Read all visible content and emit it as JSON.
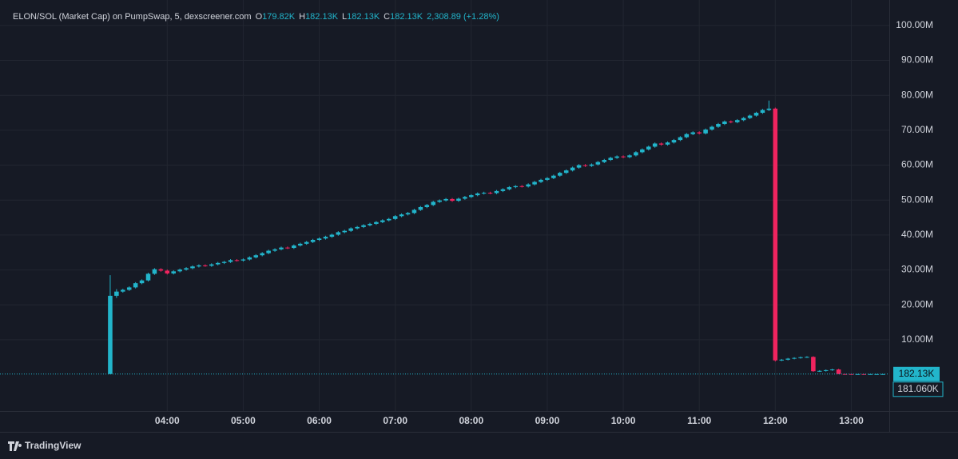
{
  "chart_data": {
    "type": "candlestick",
    "title": "ELON/SOL (Market Cap) on PumpSwap, 5, dexscreener.com",
    "ohlc_legend": [
      {
        "key": "O",
        "value": "179.82K"
      },
      {
        "key": "H",
        "value": "182.13K"
      },
      {
        "key": "L",
        "value": "182.13K"
      },
      {
        "key": "C",
        "value": "182.13K"
      }
    ],
    "change": "2,308.89 (+1.28%)",
    "up_color": "#22b5cb",
    "down_color": "#f0245f",
    "xlim": [
      "01:48",
      "13:30"
    ],
    "xticks": [
      "04:00",
      "05:00",
      "06:00",
      "07:00",
      "08:00",
      "09:00",
      "10:00",
      "11:00",
      "12:00",
      "13:00"
    ],
    "ylim": [
      -10.4,
      107.3
    ],
    "yticks": [
      {
        "value": 10,
        "label": "10.00M"
      },
      {
        "value": 20,
        "label": "20.00M"
      },
      {
        "value": 30,
        "label": "30.00M"
      },
      {
        "value": 40,
        "label": "40.00M"
      },
      {
        "value": 50,
        "label": "50.00M"
      },
      {
        "value": 60,
        "label": "60.00M"
      },
      {
        "value": 70,
        "label": "70.00M"
      },
      {
        "value": 80,
        "label": "80.00M"
      },
      {
        "value": 90,
        "label": "90.00M"
      },
      {
        "value": 100,
        "label": "100.00M"
      }
    ],
    "grid": true,
    "last_price": {
      "value": 0.18213,
      "label": "182.13K"
    },
    "secondary_label": "181.060K",
    "brand": "TradingView",
    "candles": [
      [
        "03:15",
        0.2,
        28.5,
        0.2,
        22.6
      ],
      [
        "03:20",
        22.6,
        24.5,
        22.0,
        23.8
      ],
      [
        "03:25",
        23.8,
        24.6,
        23.5,
        24.3
      ],
      [
        "03:30",
        24.3,
        25.3,
        24.0,
        25.0
      ],
      [
        "03:35",
        25.0,
        26.5,
        24.7,
        26.2
      ],
      [
        "03:40",
        26.2,
        27.3,
        25.9,
        27.0
      ],
      [
        "03:45",
        27.0,
        29.2,
        26.7,
        28.9
      ],
      [
        "03:50",
        28.9,
        30.5,
        28.6,
        30.2
      ],
      [
        "03:55",
        30.2,
        30.5,
        29.5,
        29.8
      ],
      [
        "04:00",
        29.8,
        30.1,
        28.7,
        29.0
      ],
      [
        "04:05",
        29.0,
        29.9,
        28.7,
        29.6
      ],
      [
        "04:10",
        29.6,
        30.4,
        29.3,
        30.1
      ],
      [
        "04:15",
        30.1,
        30.8,
        29.8,
        30.5
      ],
      [
        "04:20",
        30.5,
        31.3,
        30.2,
        31.0
      ],
      [
        "04:25",
        31.0,
        31.6,
        30.7,
        31.3
      ],
      [
        "04:30",
        31.3,
        31.6,
        30.9,
        31.2
      ],
      [
        "04:35",
        31.2,
        31.9,
        30.9,
        31.6
      ],
      [
        "04:40",
        31.6,
        32.3,
        31.3,
        32.0
      ],
      [
        "04:45",
        32.0,
        32.6,
        31.7,
        32.3
      ],
      [
        "04:50",
        32.3,
        33.1,
        32.0,
        32.8
      ],
      [
        "04:55",
        32.8,
        33.1,
        32.4,
        32.7
      ],
      [
        "05:00",
        32.7,
        33.3,
        32.4,
        33.0
      ],
      [
        "05:05",
        33.0,
        33.9,
        32.7,
        33.6
      ],
      [
        "05:10",
        33.6,
        34.5,
        33.3,
        34.2
      ],
      [
        "05:15",
        34.2,
        35.1,
        33.9,
        34.8
      ],
      [
        "05:20",
        34.8,
        35.8,
        34.5,
        35.5
      ],
      [
        "05:25",
        35.5,
        36.2,
        35.2,
        35.9
      ],
      [
        "05:30",
        35.9,
        36.7,
        35.6,
        36.4
      ],
      [
        "05:35",
        36.4,
        36.7,
        36.0,
        36.3
      ],
      [
        "05:40",
        36.3,
        37.3,
        36.0,
        37.0
      ],
      [
        "05:45",
        37.0,
        37.8,
        36.7,
        37.5
      ],
      [
        "05:50",
        37.5,
        38.3,
        37.2,
        38.0
      ],
      [
        "05:55",
        38.0,
        38.9,
        37.7,
        38.6
      ],
      [
        "06:00",
        38.6,
        39.3,
        38.3,
        39.0
      ],
      [
        "06:05",
        39.0,
        39.8,
        38.7,
        39.5
      ],
      [
        "06:10",
        39.5,
        40.4,
        39.2,
        40.1
      ],
      [
        "06:15",
        40.1,
        41.1,
        39.8,
        40.8
      ],
      [
        "06:20",
        40.8,
        41.5,
        40.5,
        41.2
      ],
      [
        "06:25",
        41.2,
        42.2,
        40.9,
        41.9
      ],
      [
        "06:30",
        41.9,
        42.6,
        41.6,
        42.3
      ],
      [
        "06:35",
        42.3,
        43.1,
        42.0,
        42.8
      ],
      [
        "06:40",
        42.8,
        43.5,
        42.5,
        43.2
      ],
      [
        "06:45",
        43.2,
        44.0,
        42.9,
        43.7
      ],
      [
        "06:50",
        43.7,
        44.5,
        43.4,
        44.2
      ],
      [
        "06:55",
        44.2,
        44.9,
        43.9,
        44.6
      ],
      [
        "07:00",
        44.6,
        45.7,
        44.3,
        45.4
      ],
      [
        "07:05",
        45.4,
        46.2,
        45.1,
        45.9
      ],
      [
        "07:10",
        45.9,
        46.6,
        45.6,
        46.3
      ],
      [
        "07:15",
        46.3,
        47.5,
        46.0,
        47.2
      ],
      [
        "07:20",
        47.2,
        48.3,
        46.9,
        48.0
      ],
      [
        "07:25",
        48.0,
        48.9,
        47.7,
        48.6
      ],
      [
        "07:30",
        48.6,
        49.8,
        48.3,
        49.5
      ],
      [
        "07:35",
        49.5,
        50.2,
        49.2,
        49.9
      ],
      [
        "07:40",
        49.9,
        50.6,
        49.6,
        50.3
      ],
      [
        "07:45",
        50.3,
        50.6,
        49.5,
        49.8
      ],
      [
        "07:50",
        49.8,
        50.7,
        49.5,
        50.4
      ],
      [
        "07:55",
        50.4,
        51.2,
        50.1,
        50.9
      ],
      [
        "08:00",
        50.9,
        51.7,
        50.6,
        51.4
      ],
      [
        "08:05",
        51.4,
        52.2,
        51.1,
        51.9
      ],
      [
        "08:10",
        51.9,
        52.4,
        51.6,
        52.1
      ],
      [
        "08:15",
        52.1,
        52.4,
        51.7,
        52.0
      ],
      [
        "08:20",
        52.0,
        52.9,
        51.7,
        52.6
      ],
      [
        "08:25",
        52.6,
        53.4,
        52.3,
        53.1
      ],
      [
        "08:30",
        53.1,
        54.0,
        52.8,
        53.7
      ],
      [
        "08:35",
        53.7,
        54.3,
        53.4,
        54.0
      ],
      [
        "08:40",
        54.0,
        54.3,
        53.6,
        53.9
      ],
      [
        "08:45",
        53.9,
        54.8,
        53.6,
        54.5
      ],
      [
        "08:50",
        54.5,
        55.5,
        54.2,
        55.2
      ],
      [
        "08:55",
        55.2,
        56.1,
        54.9,
        55.8
      ],
      [
        "09:00",
        55.8,
        56.6,
        55.5,
        56.3
      ],
      [
        "09:05",
        56.3,
        57.3,
        56.0,
        57.0
      ],
      [
        "09:10",
        57.0,
        58.1,
        56.7,
        57.8
      ],
      [
        "09:15",
        57.8,
        58.8,
        57.5,
        58.5
      ],
      [
        "09:20",
        58.5,
        59.6,
        58.2,
        59.3
      ],
      [
        "09:25",
        59.3,
        60.3,
        59.0,
        60.0
      ],
      [
        "09:30",
        60.0,
        60.3,
        59.5,
        59.8
      ],
      [
        "09:35",
        59.8,
        60.5,
        59.5,
        60.2
      ],
      [
        "09:40",
        60.2,
        61.2,
        59.9,
        60.9
      ],
      [
        "09:45",
        60.9,
        61.8,
        60.6,
        61.5
      ],
      [
        "09:50",
        61.5,
        62.4,
        61.2,
        62.1
      ],
      [
        "09:55",
        62.1,
        62.8,
        61.8,
        62.5
      ],
      [
        "10:00",
        62.5,
        62.8,
        62.0,
        62.3
      ],
      [
        "10:05",
        62.3,
        63.1,
        62.0,
        62.8
      ],
      [
        "10:10",
        62.8,
        64.0,
        62.5,
        63.7
      ],
      [
        "10:15",
        63.7,
        64.8,
        63.4,
        64.5
      ],
      [
        "10:20",
        64.5,
        65.6,
        64.2,
        65.3
      ],
      [
        "10:25",
        65.3,
        66.5,
        65.0,
        66.2
      ],
      [
        "10:30",
        66.2,
        66.5,
        65.6,
        65.9
      ],
      [
        "10:35",
        65.9,
        66.8,
        65.6,
        66.5
      ],
      [
        "10:40",
        66.5,
        67.5,
        66.2,
        67.2
      ],
      [
        "10:45",
        67.2,
        68.3,
        66.9,
        68.0
      ],
      [
        "10:50",
        68.0,
        69.2,
        67.7,
        68.9
      ],
      [
        "10:55",
        68.9,
        69.7,
        68.6,
        69.4
      ],
      [
        "11:00",
        69.4,
        69.7,
        68.8,
        69.1
      ],
      [
        "11:05",
        69.1,
        70.5,
        68.8,
        70.2
      ],
      [
        "11:10",
        70.2,
        71.3,
        69.9,
        71.0
      ],
      [
        "11:15",
        71.0,
        72.1,
        70.7,
        71.8
      ],
      [
        "11:20",
        71.8,
        72.8,
        71.5,
        72.5
      ],
      [
        "11:25",
        72.5,
        72.8,
        72.0,
        72.3
      ],
      [
        "11:30",
        72.3,
        73.2,
        72.0,
        72.9
      ],
      [
        "11:35",
        72.9,
        73.8,
        72.6,
        73.5
      ],
      [
        "11:40",
        73.5,
        74.5,
        73.2,
        74.2
      ],
      [
        "11:45",
        74.2,
        75.3,
        73.9,
        75.0
      ],
      [
        "11:50",
        75.0,
        76.1,
        74.7,
        75.8
      ],
      [
        "11:55",
        75.8,
        78.5,
        75.5,
        76.2
      ],
      [
        "12:00",
        76.2,
        76.5,
        3.8,
        4.1
      ],
      [
        "12:05",
        4.1,
        4.5,
        3.9,
        4.3
      ],
      [
        "12:10",
        4.3,
        4.8,
        4.1,
        4.6
      ],
      [
        "12:15",
        4.6,
        5.0,
        4.4,
        4.8
      ],
      [
        "12:20",
        4.8,
        5.2,
        4.6,
        5.0
      ],
      [
        "12:25",
        5.0,
        5.3,
        4.8,
        5.1
      ],
      [
        "12:30",
        5.1,
        5.3,
        0.8,
        1.0
      ],
      [
        "12:35",
        1.0,
        1.3,
        0.8,
        1.1
      ],
      [
        "12:40",
        1.1,
        1.5,
        0.9,
        1.3
      ],
      [
        "12:45",
        1.3,
        1.7,
        1.1,
        1.5
      ],
      [
        "12:50",
        1.5,
        1.7,
        0.18,
        0.2
      ],
      [
        "12:55",
        0.2,
        0.22,
        0.18,
        0.19
      ],
      [
        "13:00",
        0.19,
        0.2,
        0.17,
        0.18
      ],
      [
        "13:05",
        0.18,
        0.19,
        0.17,
        0.18
      ],
      [
        "13:10",
        0.18,
        0.19,
        0.17,
        0.179
      ],
      [
        "13:15",
        0.179,
        0.181,
        0.178,
        0.1798
      ],
      [
        "13:20",
        0.1798,
        0.182,
        0.1795,
        0.18
      ],
      [
        "13:25",
        0.17982,
        0.18213,
        0.17982,
        0.18213
      ]
    ]
  }
}
